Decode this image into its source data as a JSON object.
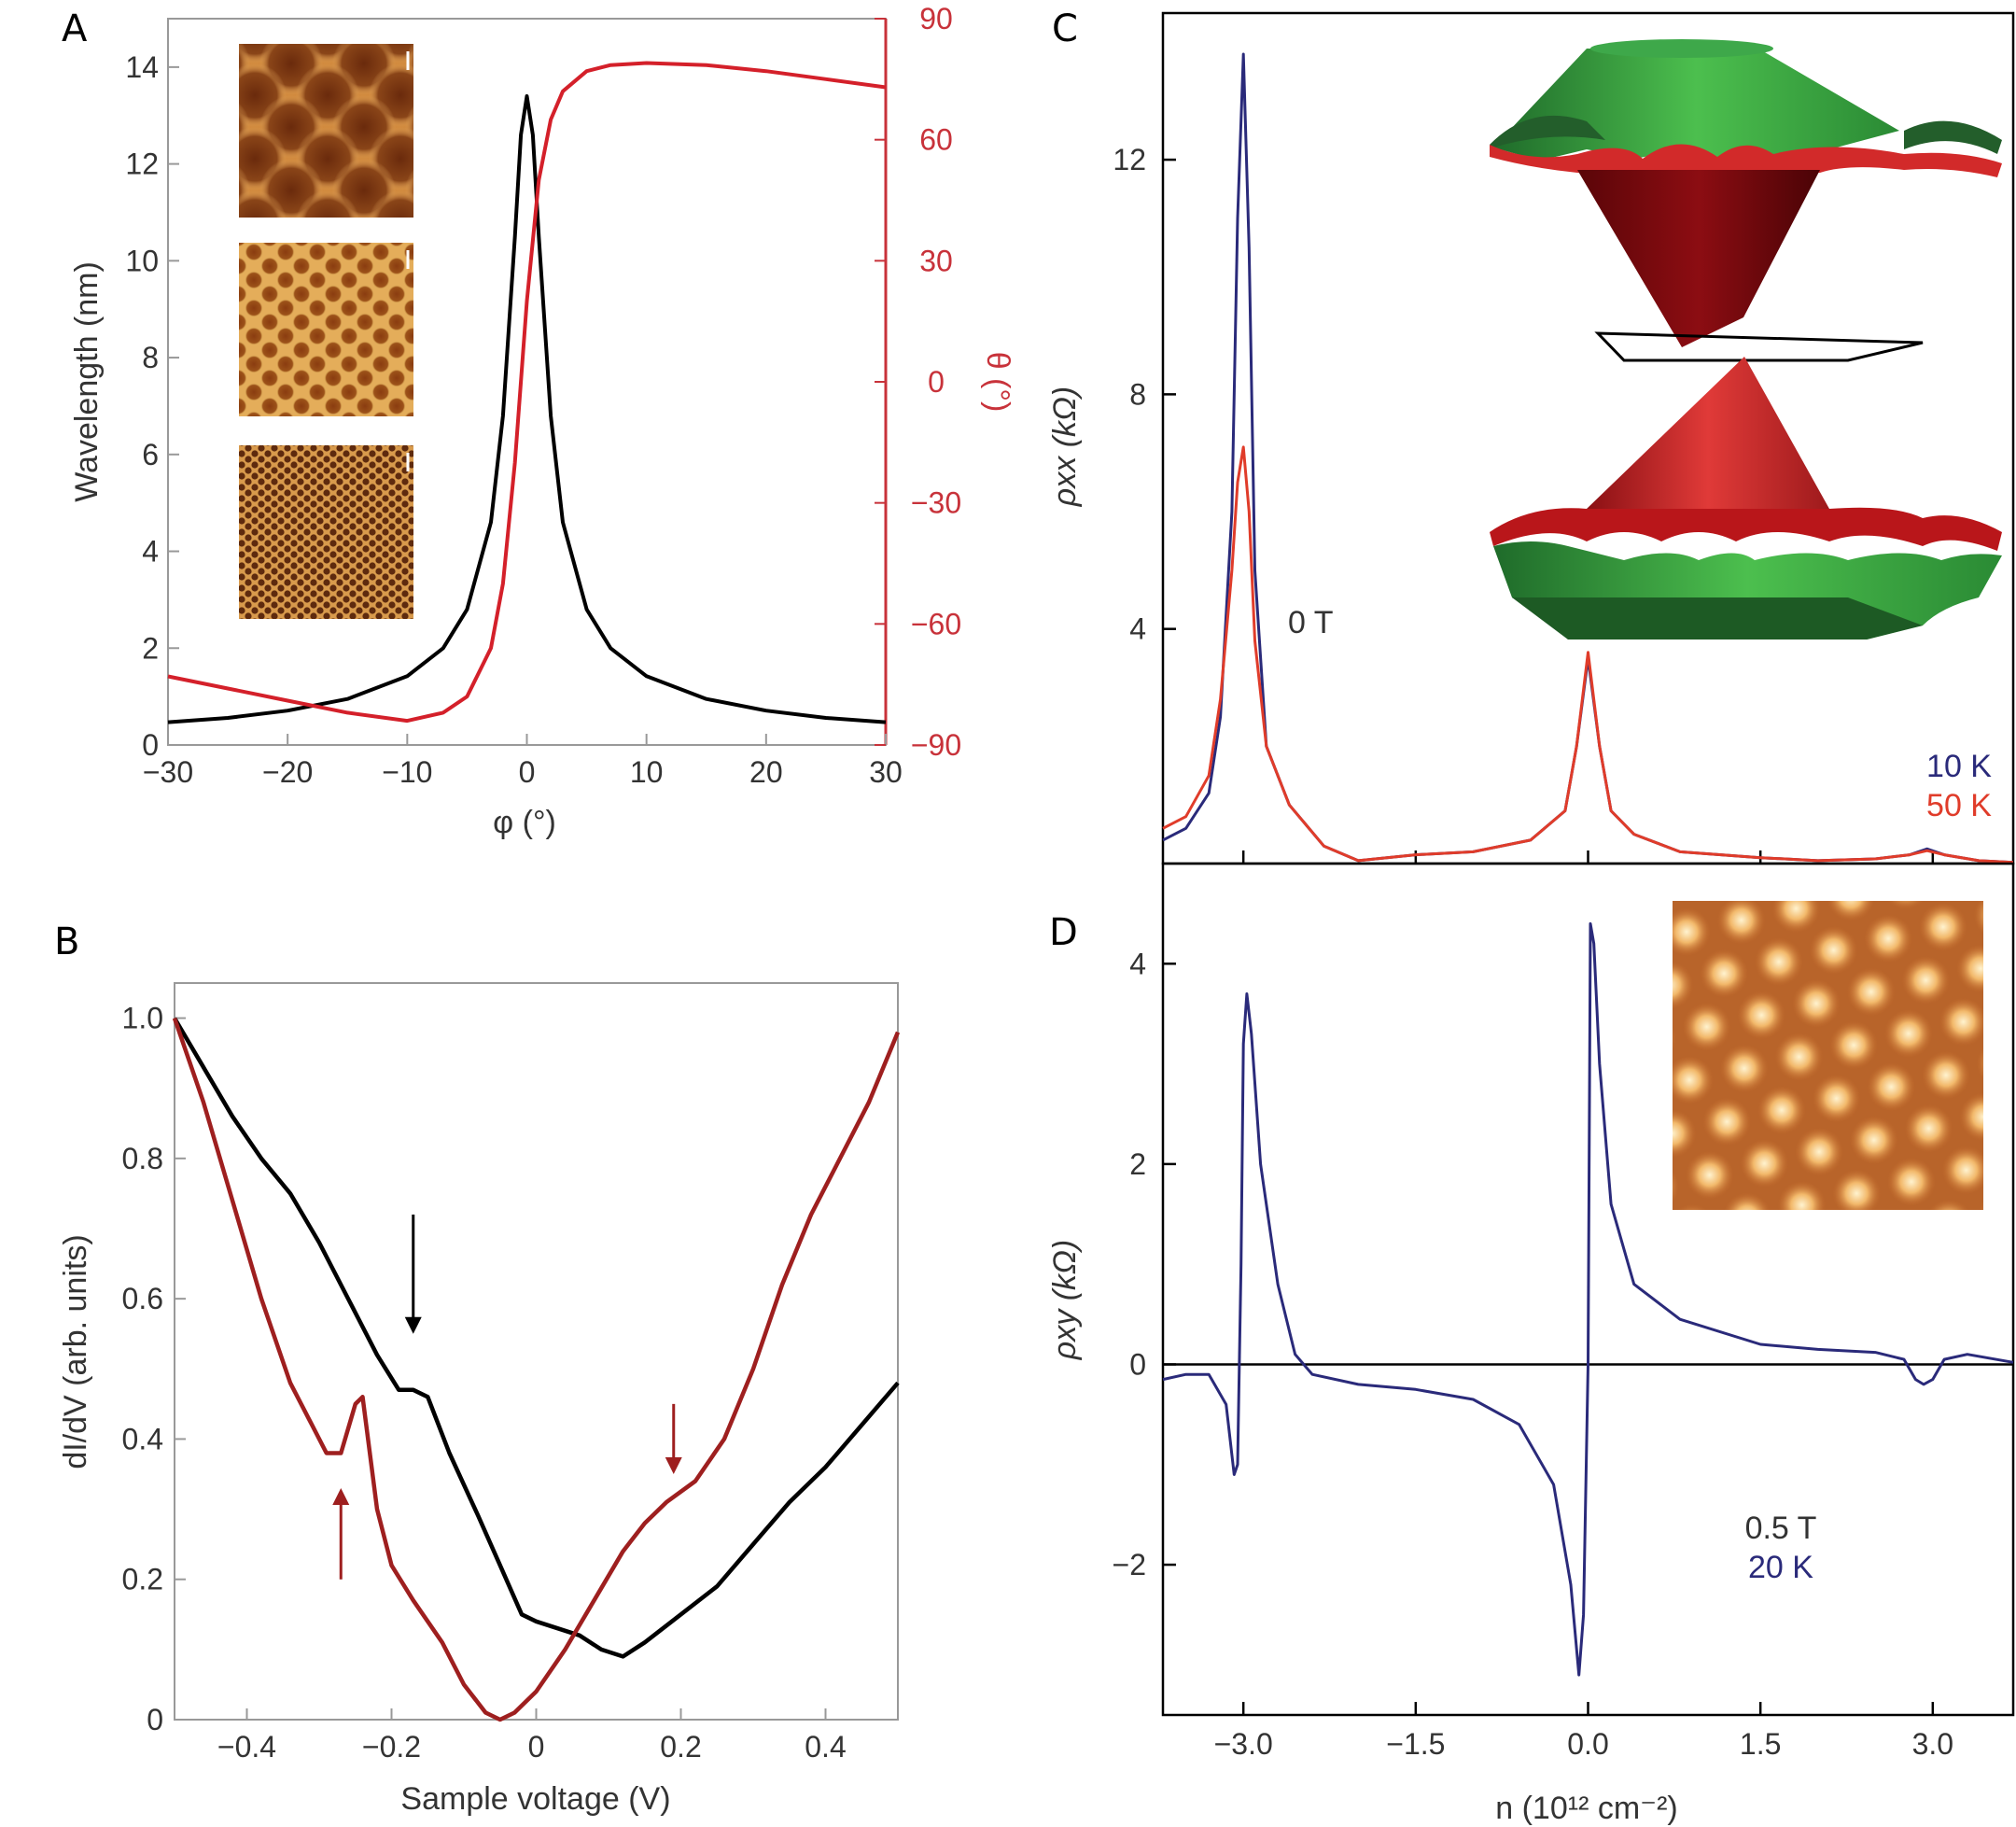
{
  "panels": {
    "A": {
      "label": "A"
    },
    "B": {
      "label": "B"
    },
    "C": {
      "label": "C"
    },
    "D": {
      "label": "D"
    }
  },
  "chart_data": [
    {
      "panel": "A",
      "type": "line",
      "xlabel": "φ (°)",
      "ylabel": "Wavelength (nm)",
      "y2label": "θ (°)",
      "xlim": [
        -30,
        30
      ],
      "ylim": [
        0,
        15
      ],
      "y2lim": [
        -90,
        90
      ],
      "x_ticks": [
        "−30",
        "−20",
        "−10",
        "0",
        "10",
        "20",
        "30"
      ],
      "y_ticks": [
        "0",
        "2",
        "4",
        "6",
        "8",
        "10",
        "12",
        "14"
      ],
      "y2_ticks": [
        "−90",
        "−60",
        "−30",
        "0",
        "30",
        "60",
        "90"
      ],
      "grid": false,
      "series": [
        {
          "axis": "left",
          "color": "#000000",
          "x": [
            -30,
            -25,
            -20,
            -15,
            -10,
            -7,
            -5,
            -3,
            -2,
            -1,
            -0.5,
            0,
            0.5,
            1,
            2,
            3,
            5,
            7,
            10,
            15,
            20,
            25,
            30
          ],
          "y": [
            0.47,
            0.56,
            0.71,
            0.95,
            1.42,
            2.0,
            2.8,
            4.6,
            6.8,
            10.5,
            12.6,
            13.4,
            12.6,
            10.5,
            6.8,
            4.6,
            2.8,
            2.0,
            1.42,
            0.95,
            0.71,
            0.56,
            0.47
          ]
        },
        {
          "axis": "right",
          "color": "#d4202a",
          "x": [
            -30,
            -25,
            -20,
            -15,
            -10,
            -7,
            -5,
            -3,
            -2,
            -1,
            0,
            1,
            2,
            3,
            5,
            7,
            10,
            15,
            20,
            25,
            30
          ],
          "y": [
            -73,
            -76,
            -79,
            -82,
            -84,
            -82,
            -78,
            -66,
            -50,
            -20,
            20,
            50,
            65,
            72,
            77,
            78.5,
            79,
            78.5,
            77,
            75,
            73
          ]
        }
      ],
      "insets": [
        {
          "name": "moire-large",
          "palette": "orange-brown"
        },
        {
          "name": "moire-medium",
          "palette": "orange-brown"
        },
        {
          "name": "moire-small",
          "palette": "orange-brown"
        }
      ]
    },
    {
      "panel": "B",
      "type": "line",
      "xlabel": "Sample voltage (V)",
      "ylabel": "dI/dV (arb. units)",
      "xlim": [
        -0.5,
        0.5
      ],
      "ylim": [
        0,
        1.05
      ],
      "x_ticks": [
        "−0.4",
        "−0.2",
        "0",
        "0.2",
        "0.4"
      ],
      "y_ticks": [
        "0",
        "0.2",
        "0.4",
        "0.6",
        "0.8",
        "1.0"
      ],
      "grid": false,
      "series": [
        {
          "color": "#000000",
          "x": [
            -0.5,
            -0.46,
            -0.42,
            -0.38,
            -0.34,
            -0.3,
            -0.26,
            -0.22,
            -0.19,
            -0.17,
            -0.15,
            -0.12,
            -0.08,
            -0.05,
            -0.02,
            0.0,
            0.03,
            0.06,
            0.09,
            0.12,
            0.15,
            0.2,
            0.25,
            0.3,
            0.35,
            0.4,
            0.45,
            0.5
          ],
          "y": [
            1.0,
            0.93,
            0.86,
            0.8,
            0.75,
            0.68,
            0.6,
            0.52,
            0.47,
            0.47,
            0.46,
            0.38,
            0.29,
            0.22,
            0.15,
            0.14,
            0.13,
            0.12,
            0.1,
            0.09,
            0.11,
            0.15,
            0.19,
            0.25,
            0.31,
            0.36,
            0.42,
            0.48
          ]
        },
        {
          "color": "#9e1f1f",
          "x": [
            -0.5,
            -0.46,
            -0.42,
            -0.38,
            -0.34,
            -0.31,
            -0.29,
            -0.27,
            -0.25,
            -0.24,
            -0.22,
            -0.2,
            -0.17,
            -0.13,
            -0.1,
            -0.07,
            -0.05,
            -0.03,
            0.0,
            0.04,
            0.08,
            0.12,
            0.15,
            0.18,
            0.22,
            0.26,
            0.3,
            0.34,
            0.38,
            0.42,
            0.46,
            0.5
          ],
          "y": [
            1.0,
            0.88,
            0.74,
            0.6,
            0.48,
            0.42,
            0.38,
            0.38,
            0.45,
            0.46,
            0.3,
            0.22,
            0.17,
            0.11,
            0.05,
            0.01,
            0.0,
            0.01,
            0.04,
            0.1,
            0.17,
            0.24,
            0.28,
            0.31,
            0.34,
            0.4,
            0.5,
            0.62,
            0.72,
            0.8,
            0.88,
            0.98
          ]
        }
      ],
      "arrows": [
        {
          "color": "#000000",
          "x": -0.17,
          "from_y": 0.72,
          "to_y": 0.55,
          "direction": "down"
        },
        {
          "color": "#9e1f1f",
          "x": 0.19,
          "from_y": 0.45,
          "to_y": 0.35,
          "direction": "down"
        },
        {
          "color": "#9e1f1f",
          "x": -0.27,
          "from_y": 0.2,
          "to_y": 0.33,
          "direction": "up"
        }
      ]
    },
    {
      "panel": "C",
      "type": "line",
      "xlabel": "",
      "ylabel": "ρxx (kΩ)",
      "xlim": [
        -3.7,
        3.7
      ],
      "ylim": [
        0,
        14.5
      ],
      "y_ticks": [
        "4",
        "8",
        "12"
      ],
      "annotation": "0 T",
      "grid": false,
      "legend": "bottom-right",
      "series": [
        {
          "name": "10 K",
          "color": "#2a2a7a",
          "x": [
            -3.7,
            -3.5,
            -3.3,
            -3.2,
            -3.1,
            -3.05,
            -3.0,
            -2.95,
            -2.9,
            -2.8,
            -2.6,
            -2.3,
            -2.0,
            -1.5,
            -1.0,
            -0.5,
            -0.2,
            -0.1,
            0.0,
            0.1,
            0.2,
            0.4,
            0.8,
            1.5,
            2.0,
            2.5,
            2.8,
            2.95,
            3.1,
            3.4,
            3.7
          ],
          "y": [
            0.4,
            0.6,
            1.2,
            2.5,
            6.0,
            11.0,
            13.8,
            10.5,
            5.0,
            2.0,
            1.0,
            0.3,
            0.05,
            0.15,
            0.2,
            0.4,
            0.9,
            2.0,
            3.5,
            2.0,
            0.9,
            0.5,
            0.2,
            0.1,
            0.05,
            0.08,
            0.15,
            0.25,
            0.15,
            0.05,
            0.02
          ]
        },
        {
          "name": "50 K",
          "color": "#e03c2a",
          "x": [
            -3.7,
            -3.5,
            -3.3,
            -3.2,
            -3.1,
            -3.05,
            -3.0,
            -2.95,
            -2.9,
            -2.8,
            -2.6,
            -2.3,
            -2.0,
            -1.5,
            -1.0,
            -0.5,
            -0.2,
            -0.1,
            0.0,
            0.1,
            0.2,
            0.4,
            0.8,
            1.5,
            2.0,
            2.5,
            2.8,
            2.95,
            3.1,
            3.4,
            3.7
          ],
          "y": [
            0.6,
            0.8,
            1.5,
            2.8,
            5.0,
            6.5,
            7.1,
            6.0,
            3.8,
            2.0,
            1.0,
            0.3,
            0.05,
            0.15,
            0.2,
            0.4,
            0.9,
            2.0,
            3.6,
            2.0,
            0.9,
            0.5,
            0.2,
            0.1,
            0.05,
            0.08,
            0.15,
            0.22,
            0.15,
            0.05,
            0.02
          ]
        }
      ],
      "inset": {
        "name": "band-structure-3d",
        "colors": [
          "#2c8a3c",
          "#8b0f14",
          "#d62a2a"
        ]
      }
    },
    {
      "panel": "D",
      "type": "line",
      "xlabel": "n (10¹² cm⁻²)",
      "ylabel": "ρxy (kΩ)",
      "xlim": [
        -3.7,
        3.7
      ],
      "ylim": [
        -3.5,
        5.0
      ],
      "x_ticks": [
        "−3.0",
        "−1.5",
        "0.0",
        "1.5",
        "3.0"
      ],
      "y_ticks": [
        "−2",
        "0",
        "2",
        "4"
      ],
      "annotation_lines": [
        "0.5 T",
        "20 K"
      ],
      "grid": false,
      "series": [
        {
          "color": "#2a2a7a",
          "x": [
            -3.7,
            -3.5,
            -3.3,
            -3.15,
            -3.08,
            -3.05,
            -3.02,
            -3.0,
            -2.97,
            -2.93,
            -2.85,
            -2.7,
            -2.55,
            -2.4,
            -2.0,
            -1.5,
            -1.0,
            -0.6,
            -0.3,
            -0.15,
            -0.08,
            -0.04,
            0.0,
            0.02,
            0.05,
            0.1,
            0.2,
            0.4,
            0.8,
            1.5,
            2.0,
            2.5,
            2.75,
            2.85,
            2.92,
            3.0,
            3.1,
            3.3,
            3.7
          ],
          "y": [
            -0.15,
            -0.1,
            -0.1,
            -0.4,
            -1.1,
            -1.0,
            1.0,
            3.2,
            3.7,
            3.3,
            2.0,
            0.8,
            0.1,
            -0.1,
            -0.2,
            -0.25,
            -0.35,
            -0.6,
            -1.2,
            -2.2,
            -3.1,
            -2.5,
            0.0,
            4.4,
            4.2,
            3.0,
            1.6,
            0.8,
            0.45,
            0.2,
            0.15,
            0.12,
            0.05,
            -0.15,
            -0.2,
            -0.15,
            0.05,
            0.1,
            0.02
          ]
        }
      ],
      "inset": {
        "name": "stm-lattice-image",
        "palette": "orange-brown"
      }
    }
  ]
}
